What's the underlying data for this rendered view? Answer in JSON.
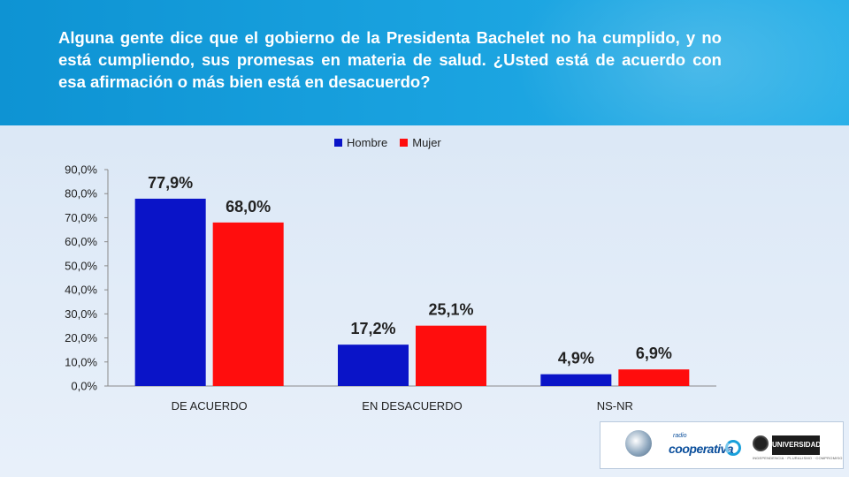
{
  "question": "Alguna gente dice que el gobierno de la Presidenta Bachelet no ha cumplido, y no está cumpliendo, sus promesas en materia de salud. ¿Usted está de acuerdo con esa afirmación o más bien está en desacuerdo?",
  "chart_data": {
    "type": "bar",
    "categories": [
      "DE ACUERDO",
      "EN DESACUERDO",
      "NS-NR"
    ],
    "series": [
      {
        "name": "Hombre",
        "values": [
          77.9,
          17.2,
          4.9
        ],
        "labels": [
          "77,9%",
          "17,2%",
          "4,9%"
        ],
        "color": "#0a14c8"
      },
      {
        "name": "Mujer",
        "values": [
          68.0,
          25.1,
          6.9
        ],
        "labels": [
          "68,0%",
          "25,1%",
          "6,9%"
        ],
        "color": "#ff0d0d"
      }
    ],
    "ylim": [
      0,
      90
    ],
    "yticks": [
      "0,0%",
      "10,0%",
      "20,0%",
      "30,0%",
      "40,0%",
      "50,0%",
      "60,0%",
      "70,0%",
      "80,0%",
      "90,0%"
    ],
    "legend_position": "top",
    "grid": false
  },
  "logos": {
    "cooperativa": "cooperativa",
    "cooperativa_small": "radio",
    "universidad": "UNIVERSIDAD CENTRAL",
    "universidad_tagline": "INDEPENDENCIA · PLURALISMO · COMPROMISO"
  }
}
